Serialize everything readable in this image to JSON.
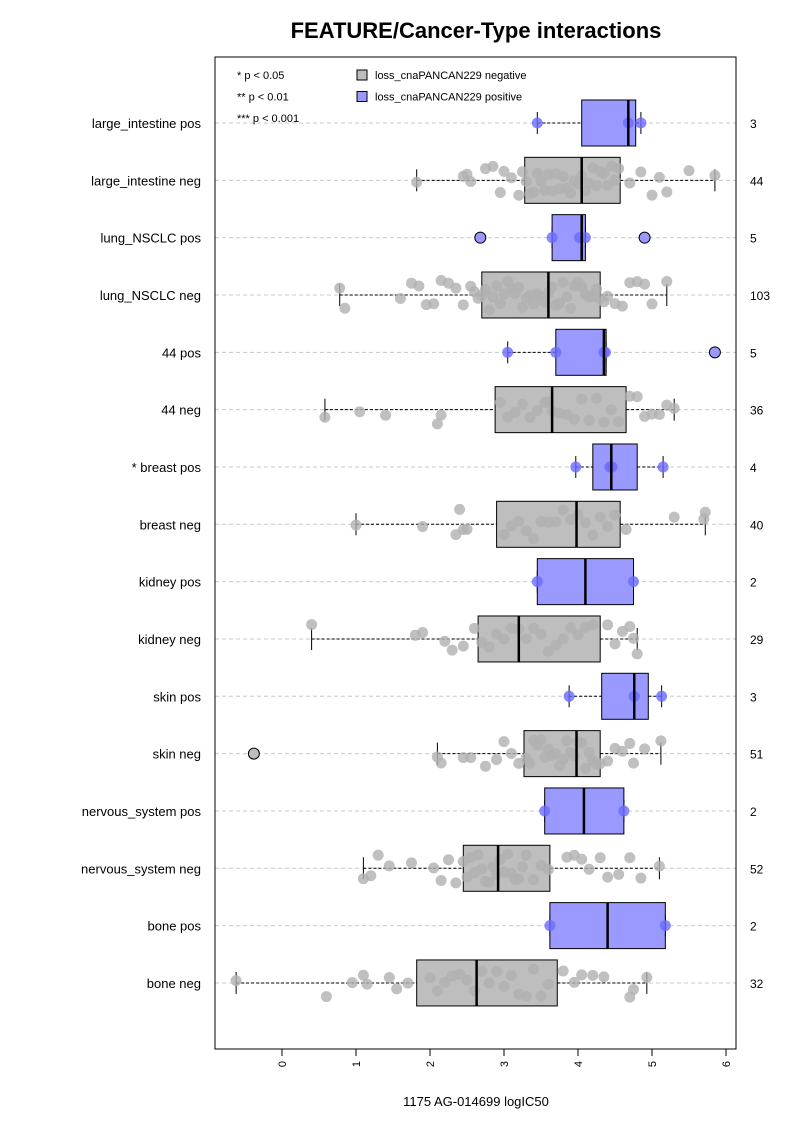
{
  "chart_data": {
    "type": "boxplot",
    "title": "FEATURE/Cancer-Type interactions",
    "xlabel": "1175 AG-014699 logIC50",
    "xlim": [
      -0.9,
      6.15
    ],
    "xticks": [
      "0",
      "1",
      "2",
      "3",
      "4",
      "5",
      "6"
    ],
    "orientation": "horizontal",
    "grid": "dashed horizontal guides",
    "legend_position": "top-left",
    "significance_legend": [
      "* p < 0.05",
      "** p < 0.01",
      "*** p < 0.001"
    ],
    "series": [
      {
        "name": "loss_cnaPANCAN229 negative",
        "color": "#bebebe",
        "point_color": "#b0b0b0"
      },
      {
        "name": "loss_cnaPANCAN229 positive",
        "color": "#9999ff",
        "point_color": "#6a6aff"
      }
    ],
    "groups": [
      {
        "label": "large_intestine pos",
        "count": "3",
        "series": 1,
        "box": {
          "min": 3.45,
          "q1": 4.05,
          "median": 4.68,
          "q3": 4.78,
          "max": 4.85
        },
        "outliers": [],
        "points": [
          3.45,
          4.68,
          4.85
        ]
      },
      {
        "label": "large_intestine neg",
        "count": "44",
        "series": 0,
        "box": {
          "min": 1.82,
          "q1": 3.28,
          "median": 4.05,
          "q3": 4.57,
          "max": 5.85
        },
        "outliers": [],
        "points": [
          1.82,
          2.45,
          2.5,
          2.55,
          2.75,
          2.85,
          2.95,
          3.0,
          3.1,
          3.2,
          3.25,
          3.3,
          3.35,
          3.4,
          3.45,
          3.5,
          3.55,
          3.6,
          3.65,
          3.7,
          3.75,
          3.8,
          3.85,
          3.9,
          3.95,
          4.0,
          4.05,
          4.1,
          4.15,
          4.2,
          4.25,
          4.3,
          4.35,
          4.4,
          4.45,
          4.5,
          4.55,
          4.7,
          4.85,
          5.0,
          5.1,
          5.2,
          5.5,
          5.85
        ]
      },
      {
        "label": "lung_NSCLC pos",
        "count": "5",
        "series": 1,
        "box": {
          "min": 3.65,
          "q1": 3.65,
          "median": 4.05,
          "q3": 4.1,
          "max": 4.1
        },
        "outliers": [
          2.68,
          4.9
        ],
        "points": [
          3.65,
          4.02,
          4.1
        ]
      },
      {
        "label": "lung_NSCLC neg",
        "count": "103",
        "series": 0,
        "box": {
          "min": 0.78,
          "q1": 2.7,
          "median": 3.6,
          "q3": 4.3,
          "max": 5.2
        },
        "outliers": [],
        "points": [
          0.78,
          0.85,
          1.6,
          1.75,
          1.85,
          1.95,
          2.05,
          2.15,
          2.25,
          2.35,
          2.45,
          2.55,
          2.6,
          2.65,
          2.7,
          2.75,
          2.8,
          2.85,
          2.9,
          2.95,
          3.0,
          3.05,
          3.1,
          3.15,
          3.2,
          3.25,
          3.3,
          3.35,
          3.4,
          3.45,
          3.5,
          3.55,
          3.6,
          3.65,
          3.7,
          3.75,
          3.8,
          3.85,
          3.9,
          3.95,
          4.0,
          4.05,
          4.1,
          4.15,
          4.2,
          4.25,
          4.3,
          4.35,
          4.4,
          4.5,
          4.6,
          4.7,
          4.8,
          4.9,
          5.0,
          5.2
        ]
      },
      {
        "label": "44 pos",
        "count": "5",
        "series": 1,
        "box": {
          "min": 3.05,
          "q1": 3.7,
          "median": 4.35,
          "q3": 4.38,
          "max": 4.38
        },
        "outliers": [
          5.85
        ],
        "points": [
          3.05,
          3.7,
          4.35,
          4.37
        ]
      },
      {
        "label": "44 neg",
        "count": "36",
        "series": 0,
        "box": {
          "min": 0.58,
          "q1": 2.88,
          "median": 3.65,
          "q3": 4.65,
          "max": 5.3
        },
        "outliers": [],
        "points": [
          0.58,
          1.05,
          1.4,
          2.1,
          2.15,
          2.95,
          3.05,
          3.15,
          3.25,
          3.35,
          3.45,
          3.55,
          3.6,
          3.65,
          3.75,
          3.85,
          3.95,
          4.05,
          4.15,
          4.25,
          4.35,
          4.45,
          4.55,
          4.7,
          4.8,
          4.9,
          5.0,
          5.1,
          5.2,
          5.3
        ]
      },
      {
        "label": "* breast pos",
        "count": "4",
        "series": 1,
        "box": {
          "min": 3.97,
          "q1": 4.2,
          "median": 4.45,
          "q3": 4.8,
          "max": 5.15
        },
        "outliers": [],
        "points": [
          3.97,
          4.43,
          4.46,
          5.15
        ]
      },
      {
        "label": "breast neg",
        "count": "40",
        "series": 0,
        "box": {
          "min": 1.0,
          "q1": 2.9,
          "median": 3.98,
          "q3": 4.57,
          "max": 5.72
        },
        "outliers": [],
        "points": [
          1.0,
          1.9,
          2.35,
          2.4,
          2.45,
          2.5,
          3.0,
          3.1,
          3.2,
          3.3,
          3.4,
          3.5,
          3.6,
          3.7,
          3.8,
          3.9,
          4.0,
          4.1,
          4.2,
          4.3,
          4.4,
          4.5,
          4.65,
          5.3,
          5.7,
          5.72
        ]
      },
      {
        "label": "kidney pos",
        "count": "2",
        "series": 1,
        "box": {
          "min": 3.45,
          "q1": 3.45,
          "median": 4.1,
          "q3": 4.75,
          "max": 4.75
        },
        "outliers": [],
        "points": [
          3.45,
          4.75
        ]
      },
      {
        "label": "kidney neg",
        "count": "29",
        "series": 0,
        "box": {
          "min": 0.4,
          "q1": 2.65,
          "median": 3.2,
          "q3": 4.3,
          "max": 4.8
        },
        "outliers": [],
        "points": [
          0.4,
          1.8,
          1.9,
          2.2,
          2.3,
          2.45,
          2.6,
          2.7,
          2.8,
          2.9,
          3.0,
          3.1,
          3.2,
          3.3,
          3.4,
          3.5,
          3.6,
          3.7,
          3.8,
          3.9,
          4.0,
          4.1,
          4.2,
          4.4,
          4.5,
          4.6,
          4.7,
          4.75,
          4.8
        ]
      },
      {
        "label": "skin pos",
        "count": "3",
        "series": 1,
        "box": {
          "min": 3.88,
          "q1": 4.32,
          "median": 4.76,
          "q3": 4.95,
          "max": 5.13
        },
        "outliers": [],
        "points": [
          3.88,
          4.76,
          5.13
        ]
      },
      {
        "label": "skin neg",
        "count": "51",
        "series": 0,
        "box": {
          "min": 2.1,
          "q1": 3.27,
          "median": 3.98,
          "q3": 4.3,
          "max": 5.12
        },
        "outliers": [
          -0.38
        ],
        "points": [
          2.1,
          2.15,
          2.45,
          2.55,
          2.75,
          2.9,
          3.0,
          3.1,
          3.2,
          3.3,
          3.35,
          3.4,
          3.45,
          3.5,
          3.55,
          3.6,
          3.65,
          3.7,
          3.75,
          3.8,
          3.85,
          3.9,
          3.95,
          4.0,
          4.05,
          4.1,
          4.15,
          4.2,
          4.25,
          4.3,
          4.4,
          4.5,
          4.6,
          4.7,
          4.75,
          4.9,
          5.12
        ]
      },
      {
        "label": "nervous_system pos",
        "count": "2",
        "series": 1,
        "box": {
          "min": 3.55,
          "q1": 3.55,
          "median": 4.08,
          "q3": 4.62,
          "max": 4.62
        },
        "outliers": [],
        "points": [
          3.55,
          4.62
        ]
      },
      {
        "label": "nervous_system neg",
        "count": "52",
        "series": 0,
        "box": {
          "min": 1.1,
          "q1": 2.45,
          "median": 2.92,
          "q3": 3.62,
          "max": 5.1
        },
        "outliers": [],
        "points": [
          1.1,
          1.2,
          1.3,
          1.45,
          1.75,
          2.05,
          2.15,
          2.25,
          2.35,
          2.45,
          2.5,
          2.55,
          2.6,
          2.65,
          2.7,
          2.75,
          2.8,
          2.85,
          2.9,
          2.95,
          3.0,
          3.05,
          3.1,
          3.15,
          3.2,
          3.25,
          3.3,
          3.4,
          3.5,
          3.6,
          3.85,
          3.95,
          4.05,
          4.15,
          4.3,
          4.4,
          4.55,
          4.7,
          4.85,
          5.1
        ]
      },
      {
        "label": "bone pos",
        "count": "2",
        "series": 1,
        "box": {
          "min": 3.62,
          "q1": 3.62,
          "median": 4.4,
          "q3": 5.18,
          "max": 5.18
        },
        "outliers": [],
        "points": [
          3.62,
          5.18
        ]
      },
      {
        "label": "bone neg",
        "count": "32",
        "series": 0,
        "box": {
          "min": -0.62,
          "q1": 1.82,
          "median": 2.63,
          "q3": 3.72,
          "max": 4.93
        },
        "outliers": [],
        "points": [
          -0.62,
          0.6,
          0.95,
          1.1,
          1.15,
          1.45,
          1.55,
          1.7,
          2.0,
          2.1,
          2.2,
          2.3,
          2.4,
          2.5,
          2.6,
          2.7,
          2.8,
          2.9,
          3.0,
          3.1,
          3.2,
          3.3,
          3.4,
          3.5,
          3.6,
          3.8,
          3.95,
          4.05,
          4.2,
          4.35,
          4.7,
          4.75,
          4.93
        ]
      }
    ]
  }
}
